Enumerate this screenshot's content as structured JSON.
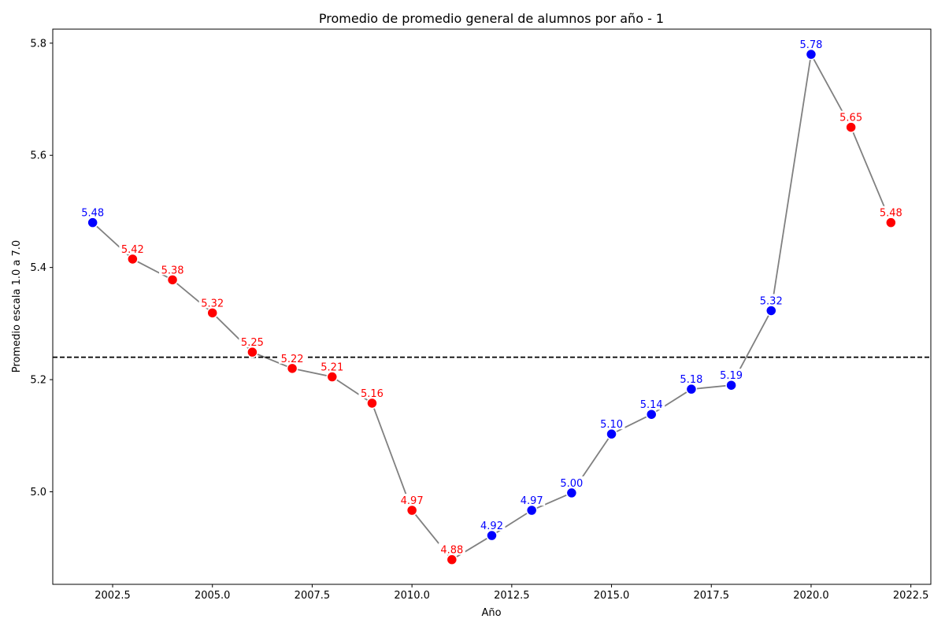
{
  "chart_data": {
    "type": "scatter",
    "title": "Promedio de promedio general de alumnos por año - 1",
    "xlabel": "Año",
    "ylabel": "Promedio escala 1.0 a 7.0",
    "xlim": [
      2001.0,
      2023.0
    ],
    "ylim": [
      4.835,
      5.825
    ],
    "x_ticks": [
      2002.5,
      2005.0,
      2007.5,
      2010.0,
      2012.5,
      2015.0,
      2017.5,
      2020.0,
      2022.5
    ],
    "x_tick_labels": [
      "2002.5",
      "2005.0",
      "2007.5",
      "2010.0",
      "2012.5",
      "2015.0",
      "2017.5",
      "2020.0",
      "2022.5"
    ],
    "y_ticks": [
      5.0,
      5.2,
      5.4,
      5.6,
      5.8
    ],
    "y_tick_labels": [
      "5.0",
      "5.2",
      "5.4",
      "5.6",
      "5.8"
    ],
    "reference_line": {
      "y": 5.24,
      "style": "dashed",
      "color": "#000000"
    },
    "line_color": "#808080",
    "colors": {
      "above": "#0000ff",
      "below": "#ff0000"
    },
    "points": [
      {
        "x": 2002,
        "y": 5.48,
        "label": "5.48",
        "color": "blue"
      },
      {
        "x": 2003,
        "y": 5.415,
        "label": "5.42",
        "color": "red"
      },
      {
        "x": 2004,
        "y": 5.378,
        "label": "5.38",
        "color": "red"
      },
      {
        "x": 2005,
        "y": 5.319,
        "label": "5.32",
        "color": "red"
      },
      {
        "x": 2006,
        "y": 5.249,
        "label": "5.25",
        "color": "red"
      },
      {
        "x": 2007,
        "y": 5.22,
        "label": "5.22",
        "color": "red"
      },
      {
        "x": 2008,
        "y": 5.205,
        "label": "5.21",
        "color": "red"
      },
      {
        "x": 2009,
        "y": 5.158,
        "label": "5.16",
        "color": "red"
      },
      {
        "x": 2010,
        "y": 4.967,
        "label": "4.97",
        "color": "red"
      },
      {
        "x": 2011,
        "y": 4.879,
        "label": "4.88",
        "color": "red"
      },
      {
        "x": 2012,
        "y": 4.922,
        "label": "4.92",
        "color": "blue"
      },
      {
        "x": 2013,
        "y": 4.967,
        "label": "4.97",
        "color": "blue"
      },
      {
        "x": 2014,
        "y": 4.998,
        "label": "5.00",
        "color": "blue"
      },
      {
        "x": 2015,
        "y": 5.103,
        "label": "5.10",
        "color": "blue"
      },
      {
        "x": 2016,
        "y": 5.138,
        "label": "5.14",
        "color": "blue"
      },
      {
        "x": 2017,
        "y": 5.183,
        "label": "5.18",
        "color": "blue"
      },
      {
        "x": 2018,
        "y": 5.19,
        "label": "5.19",
        "color": "blue"
      },
      {
        "x": 2019,
        "y": 5.323,
        "label": "5.32",
        "color": "blue"
      },
      {
        "x": 2020,
        "y": 5.78,
        "label": "5.78",
        "color": "blue"
      },
      {
        "x": 2021,
        "y": 5.65,
        "label": "5.65",
        "color": "red"
      },
      {
        "x": 2022,
        "y": 5.48,
        "label": "5.48",
        "color": "red"
      }
    ]
  }
}
